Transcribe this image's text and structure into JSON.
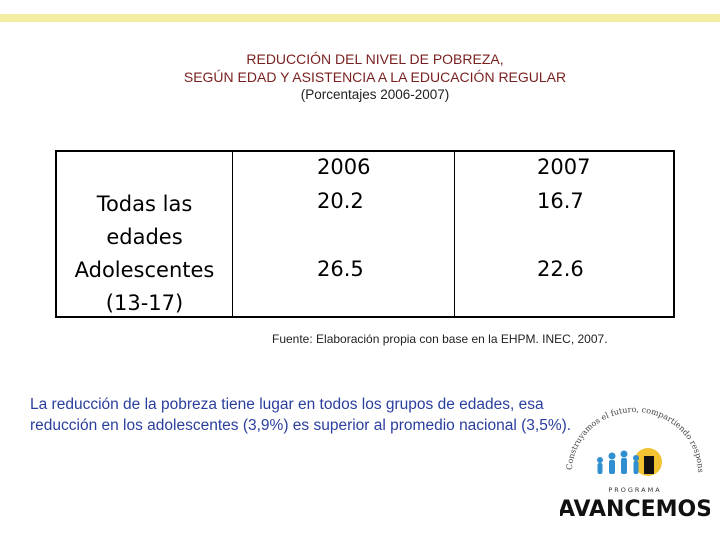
{
  "title": {
    "line1": "REDUCCIÓN DEL NIVEL DE POBREZA,",
    "line2": "SEGÚN EDAD Y ASISTENCIA A LA EDUCACIÓN REGULAR",
    "subtitle": "(Porcentajes 2006-2007)"
  },
  "table": {
    "headers": [
      "2006",
      "2007"
    ],
    "rows": [
      {
        "label": "Todas las edades",
        "values": [
          "20.2",
          "16.7"
        ]
      },
      {
        "label": "Adolescentes (13-17)",
        "values": [
          "26.5",
          "22.6"
        ]
      }
    ]
  },
  "source": "Fuente: Elaboración propia con base en la EHPM. INEC, 2007.",
  "summary": "La reducción de la pobreza tiene lugar en todos los grupos de edades, esa reducción en los adolescentes (3,9%) es superior al promedio nacional (3,5%).",
  "logo": {
    "arc_text": "Construyamos el futuro, compartiendo responsabilidades",
    "program": "PROGRAMA",
    "name": "AVANCEMOS",
    "colors": {
      "sun": "#f2c230",
      "figures": "#2f8fd1",
      "word": "#111111"
    }
  }
}
